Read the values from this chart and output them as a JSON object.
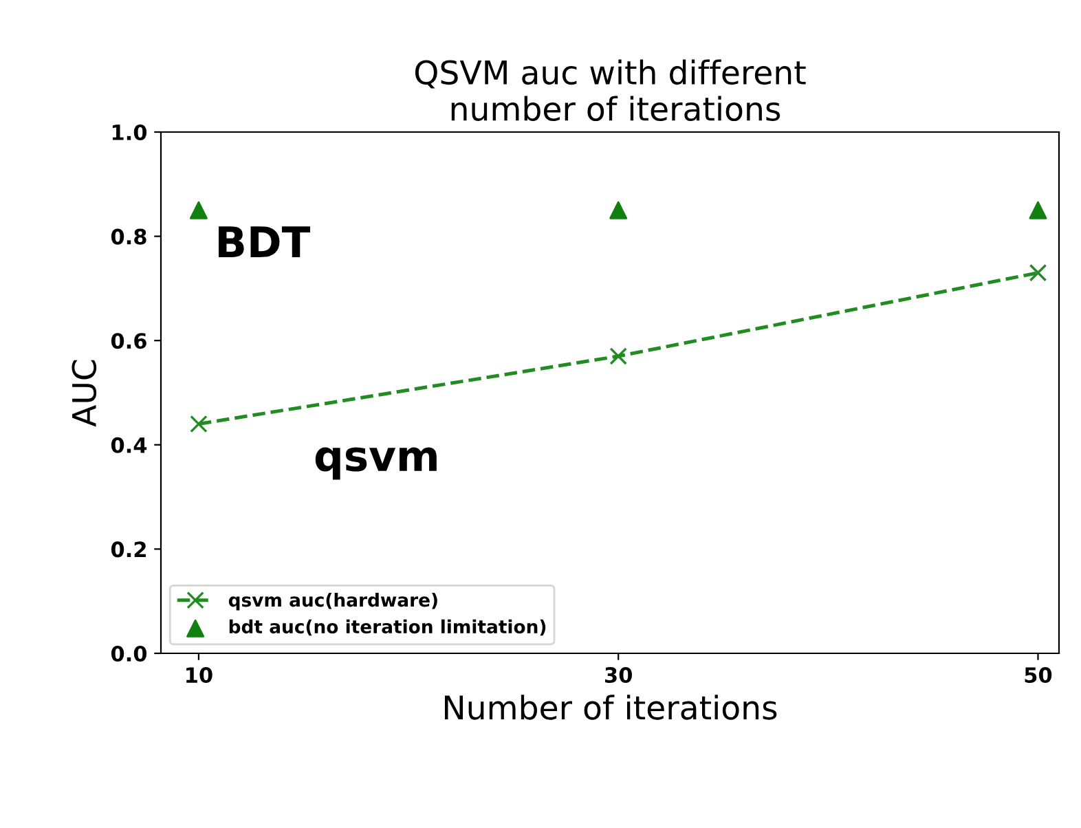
{
  "chart_data": {
    "type": "line",
    "title": "QSVM auc with different\n number of iterations",
    "xlabel": "Number of iterations",
    "ylabel": "AUC",
    "x": [
      10,
      30,
      50
    ],
    "series": [
      {
        "name": "qsvm auc(hardware)",
        "color": "#228b22",
        "values": [
          0.44,
          0.57,
          0.73
        ],
        "marker": "cross",
        "line_style": "dashed"
      },
      {
        "name": "bdt auc(no iteration limitation)",
        "type": "scatter",
        "color": "#118011",
        "values": [
          0.85,
          0.85,
          0.85
        ],
        "marker": "triangle"
      }
    ],
    "annotations": [
      "BDT",
      "qsvm"
    ],
    "xlim": [
      8.2,
      51
    ],
    "xticks": [
      10,
      30,
      50
    ],
    "ylim": [
      0,
      1
    ],
    "yticks": [
      {
        "value": 0,
        "label": "0.0"
      },
      0.2,
      0.4,
      0.6,
      0.8,
      {
        "value": 1,
        "label": "1.0"
      }
    ],
    "legend": "bottom left",
    "grid": false
  }
}
